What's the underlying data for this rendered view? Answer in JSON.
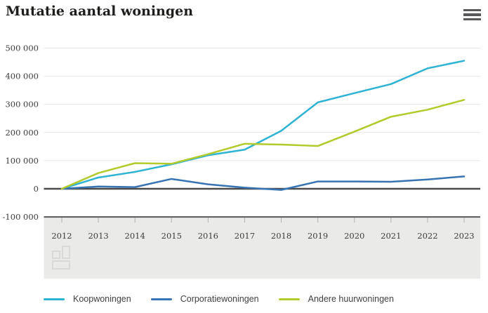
{
  "header": {
    "title": "Mutatie aantal woningen"
  },
  "chart_data": {
    "type": "line",
    "title": "Mutatie aantal woningen",
    "xlabel": "",
    "ylabel": "",
    "grid": true,
    "legend_position": "bottom",
    "x_labels": [
      "2012",
      "2013",
      "2014",
      "2015",
      "2016",
      "2017",
      "2018",
      "2019",
      "2020",
      "2021",
      "2022",
      "2023"
    ],
    "y_axis": {
      "values": [
        -100000,
        0,
        100000,
        200000,
        300000,
        400000,
        500000
      ],
      "labels": [
        "-100 000",
        "0",
        "100 000",
        "200 000",
        "300 000",
        "400 000",
        "500 000"
      ],
      "ylim": [
        -100000,
        500000
      ]
    },
    "series": [
      {
        "name": "Koopwoningen",
        "color": "#2fb3d4",
        "values": [
          0,
          40000,
          60000,
          87000,
          119000,
          139000,
          206000,
          307000,
          340000,
          372000,
          428000,
          455000
        ]
      },
      {
        "name": "Corporatiewoningen",
        "color": "#3774b4",
        "values": [
          0,
          8000,
          6000,
          35000,
          16000,
          4000,
          -4000,
          26000,
          26000,
          25000,
          33000,
          44000
        ]
      },
      {
        "name": "Andere huurwoningen",
        "color": "#b3ca2b",
        "values": [
          0,
          56000,
          91000,
          89000,
          123000,
          160000,
          157000,
          152000,
          203000,
          256000,
          281000,
          316000
        ]
      }
    ],
    "colors": {
      "zero_line": "#4a4a4a",
      "bottom_line": "#58585a",
      "gridline": "#e6e6e6",
      "tick": "#b0b0b0",
      "axis_text": "#3c3c3b",
      "band_fill": "#eaeae8"
    },
    "watermark": "cbs-logo"
  }
}
